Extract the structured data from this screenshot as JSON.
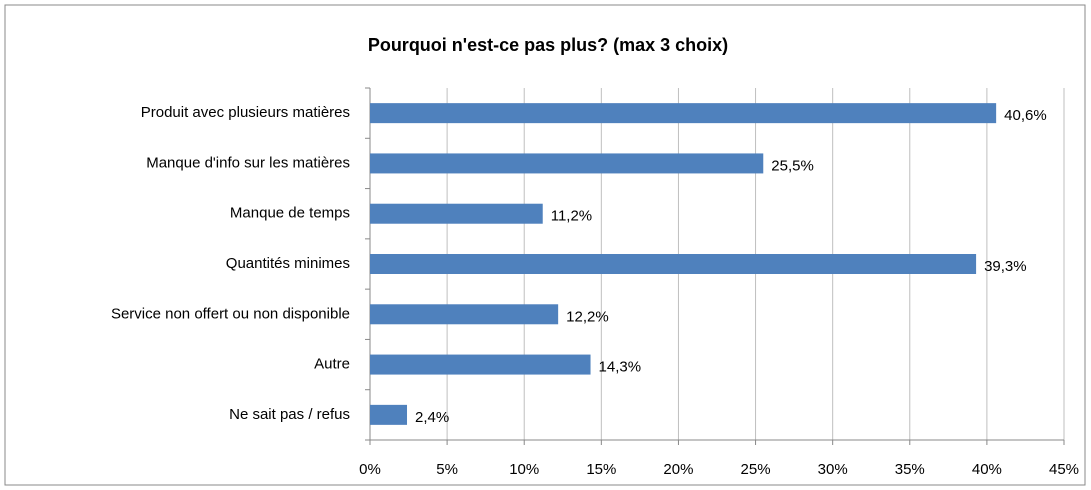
{
  "chart_data": {
    "type": "bar",
    "orientation": "horizontal",
    "title": "Pourquoi n'est-ce pas plus? (max 3 choix)",
    "categories": [
      "Produit avec plusieurs matières",
      "Manque d'info sur les matières",
      "Manque de temps",
      "Quantités minimes",
      "Service non offert ou non disponible",
      "Autre",
      "Ne sait pas / refus"
    ],
    "values": [
      40.6,
      25.5,
      11.2,
      39.3,
      12.2,
      14.3,
      2.4
    ],
    "value_labels": [
      "40,6%",
      "25,5%",
      "11,2%",
      "39,3%",
      "12,2%",
      "14,3%",
      "2,4%"
    ],
    "color": "#4f81bd",
    "xlim": [
      0,
      45
    ],
    "xticks": [
      {
        "value": 0,
        "label": "0%"
      },
      {
        "value": 5,
        "label": "5%"
      },
      {
        "value": 10,
        "label": "10%"
      },
      {
        "value": 15,
        "label": "15%"
      },
      {
        "value": 20,
        "label": "20%"
      },
      {
        "value": 25,
        "label": "25%"
      },
      {
        "value": 30,
        "label": "30%"
      },
      {
        "value": 35,
        "label": "35%"
      },
      {
        "value": 40,
        "label": "40%"
      },
      {
        "value": 45,
        "label": "45%"
      }
    ],
    "grid": true
  }
}
